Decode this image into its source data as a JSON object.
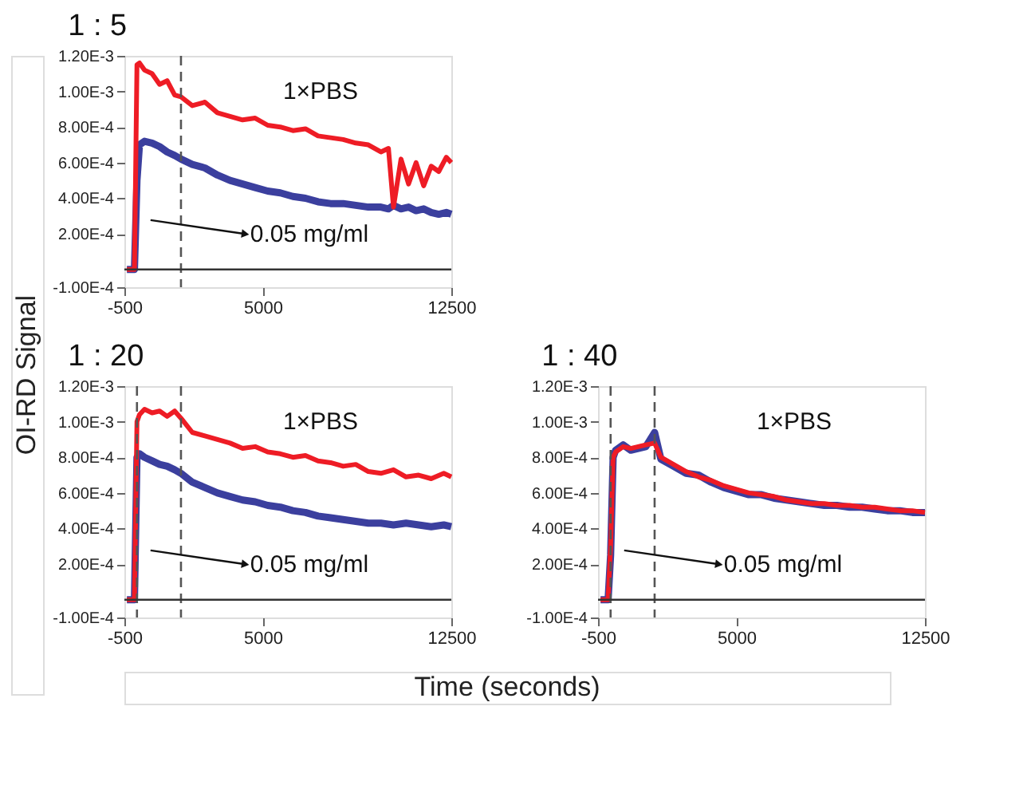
{
  "chart_data": [
    {
      "type": "line",
      "title": "1 : 5",
      "ylabel": "OI-RD Signal",
      "x": [
        -400,
        -100,
        0,
        100,
        300,
        600,
        900,
        1200,
        1500,
        1750,
        2200,
        2700,
        3200,
        3700,
        4200,
        4700,
        5200,
        5700,
        6200,
        6700,
        7200,
        7700,
        8200,
        8700,
        9200,
        9700,
        10000,
        10200,
        10500,
        10800,
        11100,
        11400,
        11700,
        12000,
        12300,
        12500
      ],
      "series": [
        {
          "color": "#3b3f9e",
          "values": [
            0,
            0,
            0.0005,
            0.0007,
            0.00072,
            0.00071,
            0.00069,
            0.00066,
            0.00064,
            0.00062,
            0.00059,
            0.00057,
            0.00053,
            0.0005,
            0.00048,
            0.00046,
            0.00044,
            0.00043,
            0.00041,
            0.0004,
            0.00038,
            0.00037,
            0.00037,
            0.00036,
            0.00035,
            0.00035,
            0.00034,
            0.00036,
            0.00034,
            0.00035,
            0.00033,
            0.00034,
            0.00032,
            0.00031,
            0.00032,
            0.00031
          ]
        },
        {
          "color": "#ee1c25",
          "values": [
            0,
            0,
            0.00115,
            0.00116,
            0.00112,
            0.0011,
            0.00104,
            0.00106,
            0.00098,
            0.00097,
            0.00092,
            0.00094,
            0.00088,
            0.00086,
            0.00084,
            0.00085,
            0.00081,
            0.0008,
            0.00078,
            0.00079,
            0.00075,
            0.00074,
            0.00073,
            0.00071,
            0.0007,
            0.00066,
            0.00068,
            0.00035,
            0.00062,
            0.00048,
            0.0006,
            0.00047,
            0.00058,
            0.00055,
            0.00063,
            0.0006
          ]
        }
      ],
      "xlim": [
        -500,
        12500
      ],
      "xticks": [
        -500,
        5000,
        12500
      ],
      "ylim": [
        -0.0001,
        0.0012
      ],
      "yticks": [
        {
          "value": -0.0001,
          "label": "-1.00E-4"
        },
        {
          "value": 0.0002,
          "label": "2.00E-4"
        },
        {
          "value": 0.0004,
          "label": "4.00E-4"
        },
        {
          "value": 0.0006,
          "label": "6.00E-4"
        },
        {
          "value": 0.0008,
          "label": "8.00E-4"
        },
        {
          "value": 0.001,
          "label": "1.00E-3"
        },
        {
          "value": 0.0012,
          "label": "1.20E-3"
        }
      ],
      "ref_lines": [
        {
          "axis": "x",
          "value": 1750,
          "line_style": "dashed",
          "color": "#555555"
        },
        {
          "axis": "y",
          "value": 0,
          "line_style": "solid",
          "color": "#333333"
        }
      ],
      "annotations": [
        "1×PBS",
        "0.05 mg/ml"
      ],
      "grid": false,
      "marker": "none",
      "line_style": "solid"
    },
    {
      "type": "line",
      "title": "1 : 20",
      "x": [
        -400,
        -100,
        0,
        100,
        300,
        600,
        900,
        1200,
        1500,
        1750,
        2200,
        2700,
        3200,
        3700,
        4200,
        4700,
        5200,
        5700,
        6200,
        6700,
        7200,
        7700,
        8200,
        8700,
        9200,
        9700,
        10200,
        10700,
        11200,
        11700,
        12200,
        12500
      ],
      "series": [
        {
          "color": "#3b3f9e",
          "values": [
            0,
            0,
            0.0008,
            0.00082,
            0.0008,
            0.00078,
            0.00076,
            0.00075,
            0.00073,
            0.00071,
            0.00066,
            0.00063,
            0.0006,
            0.00058,
            0.00056,
            0.00055,
            0.00053,
            0.00052,
            0.0005,
            0.00049,
            0.00047,
            0.00046,
            0.00045,
            0.00044,
            0.00043,
            0.00043,
            0.00042,
            0.00043,
            0.00042,
            0.00041,
            0.00042,
            0.00041
          ]
        },
        {
          "color": "#ee1c25",
          "values": [
            0,
            0,
            0.001,
            0.00104,
            0.00107,
            0.00105,
            0.00106,
            0.00103,
            0.00106,
            0.00102,
            0.00094,
            0.00092,
            0.0009,
            0.00088,
            0.00085,
            0.00086,
            0.00083,
            0.00082,
            0.0008,
            0.00081,
            0.00078,
            0.00077,
            0.00075,
            0.00076,
            0.00072,
            0.00071,
            0.00073,
            0.00069,
            0.0007,
            0.00068,
            0.00071,
            0.00069
          ]
        }
      ],
      "xlim": [
        -500,
        12500
      ],
      "xticks": [
        -500,
        5000,
        12500
      ],
      "ylim": [
        -0.0001,
        0.0012
      ],
      "yticks": [
        {
          "value": -0.0001,
          "label": "-1.00E-4"
        },
        {
          "value": 0.0002,
          "label": "2.00E-4"
        },
        {
          "value": 0.0004,
          "label": "4.00E-4"
        },
        {
          "value": 0.0006,
          "label": "6.00E-4"
        },
        {
          "value": 0.0008,
          "label": "8.00E-4"
        },
        {
          "value": 0.001,
          "label": "1.00E-3"
        },
        {
          "value": 0.0012,
          "label": "1.20E-3"
        }
      ],
      "ref_lines": [
        {
          "axis": "x",
          "value": 0,
          "line_style": "dashed",
          "color": "#555555"
        },
        {
          "axis": "x",
          "value": 1750,
          "line_style": "dashed",
          "color": "#555555"
        },
        {
          "axis": "y",
          "value": 0,
          "line_style": "solid",
          "color": "#333333"
        }
      ],
      "annotations": [
        "1×PBS",
        "0.05 mg/ml"
      ],
      "grid": false,
      "marker": "none",
      "line_style": "solid"
    },
    {
      "type": "line",
      "title": "1 : 40",
      "xlabel": "Time (seconds)",
      "x": [
        -400,
        -100,
        0,
        100,
        200,
        500,
        800,
        1100,
        1400,
        1750,
        2000,
        2500,
        3000,
        3500,
        4000,
        4500,
        5000,
        5500,
        6000,
        6500,
        7000,
        7500,
        8000,
        8500,
        9000,
        9500,
        10000,
        10500,
        11000,
        11500,
        12000,
        12500
      ],
      "series": [
        {
          "color": "#3b3f9e",
          "values": [
            0,
            0,
            0.00025,
            0.0008,
            0.00084,
            0.00087,
            0.00084,
            0.00085,
            0.00086,
            0.00094,
            0.00079,
            0.00075,
            0.00071,
            0.0007,
            0.00066,
            0.00063,
            0.00061,
            0.00059,
            0.00059,
            0.00057,
            0.00056,
            0.00055,
            0.00054,
            0.00053,
            0.00053,
            0.00052,
            0.00052,
            0.00051,
            0.0005,
            0.0005,
            0.00049,
            0.00049
          ]
        },
        {
          "color": "#ee1c25",
          "values": [
            0,
            0,
            0.0003,
            0.0008,
            0.00083,
            0.00086,
            0.00085,
            0.00086,
            0.00087,
            0.00088,
            0.0008,
            0.00076,
            0.00072,
            0.00069,
            0.00067,
            0.00064,
            0.00062,
            0.0006,
            0.00059,
            0.00058,
            0.00056,
            0.00055,
            0.00054,
            0.00054,
            0.00053,
            0.00053,
            0.00052,
            0.00052,
            0.00051,
            0.0005,
            0.0005,
            0.00049
          ]
        }
      ],
      "xlim": [
        -500,
        12500
      ],
      "xticks": [
        -500,
        5000,
        12500
      ],
      "ylim": [
        -0.0001,
        0.0012
      ],
      "yticks": [
        {
          "value": -0.0001,
          "label": "-1.00E-4"
        },
        {
          "value": 0.0002,
          "label": "2.00E-4"
        },
        {
          "value": 0.0004,
          "label": "4.00E-4"
        },
        {
          "value": 0.0006,
          "label": "6.00E-4"
        },
        {
          "value": 0.0008,
          "label": "8.00E-4"
        },
        {
          "value": 0.001,
          "label": "1.00E-3"
        },
        {
          "value": 0.0012,
          "label": "1.20E-3"
        }
      ],
      "ref_lines": [
        {
          "axis": "x",
          "value": 0,
          "line_style": "dashed",
          "color": "#555555"
        },
        {
          "axis": "x",
          "value": 1750,
          "line_style": "dashed",
          "color": "#555555"
        },
        {
          "axis": "y",
          "value": 0,
          "line_style": "solid",
          "color": "#333333"
        }
      ],
      "annotations": [
        "1×PBS",
        "0.05 mg/ml"
      ],
      "grid": false,
      "marker": "none",
      "line_style": "solid"
    }
  ]
}
